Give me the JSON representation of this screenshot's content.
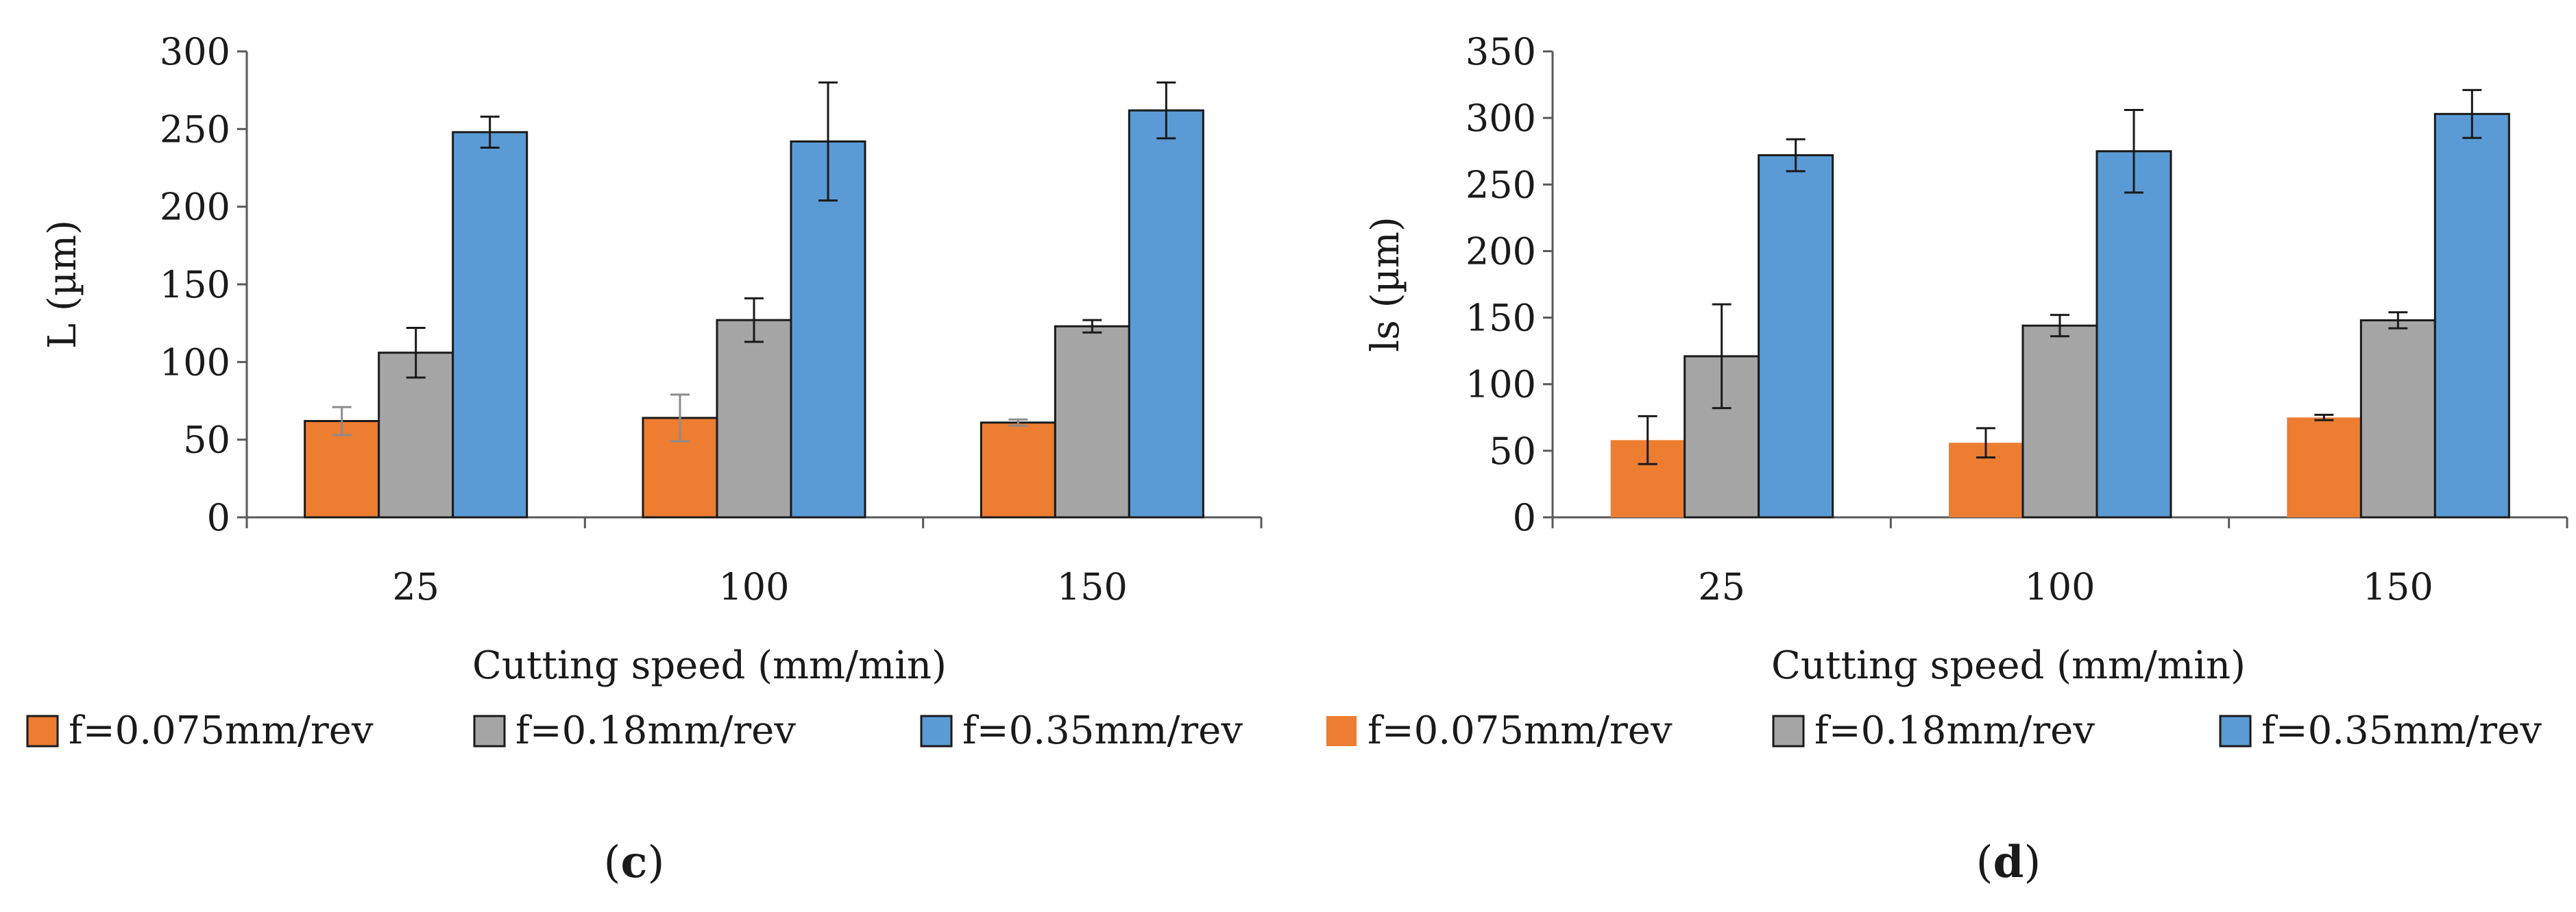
{
  "colors": {
    "orange": "#ED7D31",
    "gray": "#A5A5A5",
    "blue": "#5B9BD5",
    "axis": "#595959",
    "bar_edge": "#1a1a1a",
    "error_dark": "#1a1a1a",
    "error_light": "#8c8c8c"
  },
  "chart_data": [
    {
      "type": "bar",
      "panel_label_open": "(",
      "panel_label_letter": "c",
      "panel_label_close": ")",
      "xlabel": "Cutting speed (mm/min)",
      "ylabel": "L (µm)",
      "ylim": [
        0,
        300
      ],
      "yticks": [
        0,
        50,
        100,
        150,
        200,
        250,
        300
      ],
      "categories": [
        "25",
        "100",
        "150"
      ],
      "legend_position": "bottom",
      "series": [
        {
          "name": "f=0.075mm/rev",
          "color": "#ED7D31",
          "values": [
            62,
            64,
            61
          ],
          "errors": [
            9,
            15,
            2
          ],
          "error_color": "#8c8c8c",
          "edge": true
        },
        {
          "name": "f=0.18mm/rev",
          "color": "#A5A5A5",
          "values": [
            106,
            127,
            123
          ],
          "errors": [
            16,
            14,
            4
          ],
          "error_color": "#1a1a1a",
          "edge": true
        },
        {
          "name": "f=0.35mm/rev",
          "color": "#5B9BD5",
          "values": [
            248,
            242,
            262
          ],
          "errors": [
            10,
            38,
            18
          ],
          "error_color": "#1a1a1a",
          "edge": true
        }
      ]
    },
    {
      "type": "bar",
      "panel_label_open": "(",
      "panel_label_letter": "d",
      "panel_label_close": ")",
      "xlabel": "Cutting speed (mm/min)",
      "ylabel": "ls (µm)",
      "ylim": [
        0,
        350
      ],
      "yticks": [
        0,
        50,
        100,
        150,
        200,
        250,
        300,
        350
      ],
      "categories": [
        "25",
        "100",
        "150"
      ],
      "legend_position": "bottom",
      "series": [
        {
          "name": "f=0.075mm/rev",
          "color": "#ED7D31",
          "values": [
            58,
            56,
            75
          ],
          "errors": [
            18,
            11,
            2
          ],
          "error_color": "#1a1a1a",
          "edge": false
        },
        {
          "name": "f=0.18mm/rev",
          "color": "#A5A5A5",
          "values": [
            121,
            144,
            148
          ],
          "errors": [
            39,
            8,
            6
          ],
          "error_color": "#1a1a1a",
          "edge": true
        },
        {
          "name": "f=0.35mm/rev",
          "color": "#5B9BD5",
          "values": [
            272,
            275,
            303
          ],
          "errors": [
            12,
            31,
            18
          ],
          "error_color": "#1a1a1a",
          "edge": true
        }
      ]
    }
  ]
}
